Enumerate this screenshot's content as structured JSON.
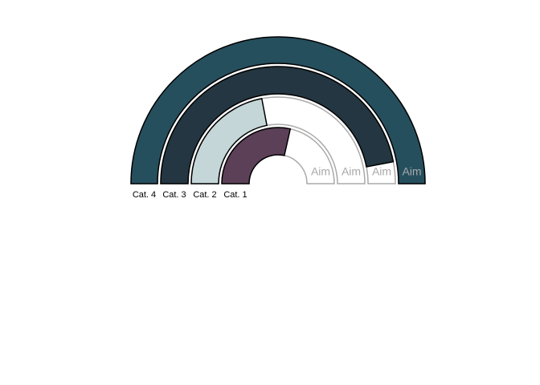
{
  "chart_data": {
    "type": "radial-gauge",
    "categories": [
      "Cat. 4",
      "Cat. 3",
      "Cat. 2",
      "Cat. 1"
    ],
    "series": [
      {
        "values": [
          100,
          94,
          44,
          57
        ],
        "colors": [
          "#264f5e",
          "#243641",
          "#c5d6d8",
          "#5c4058"
        ]
      }
    ],
    "ylim": [
      0,
      100
    ],
    "target_label": "Aim"
  }
}
